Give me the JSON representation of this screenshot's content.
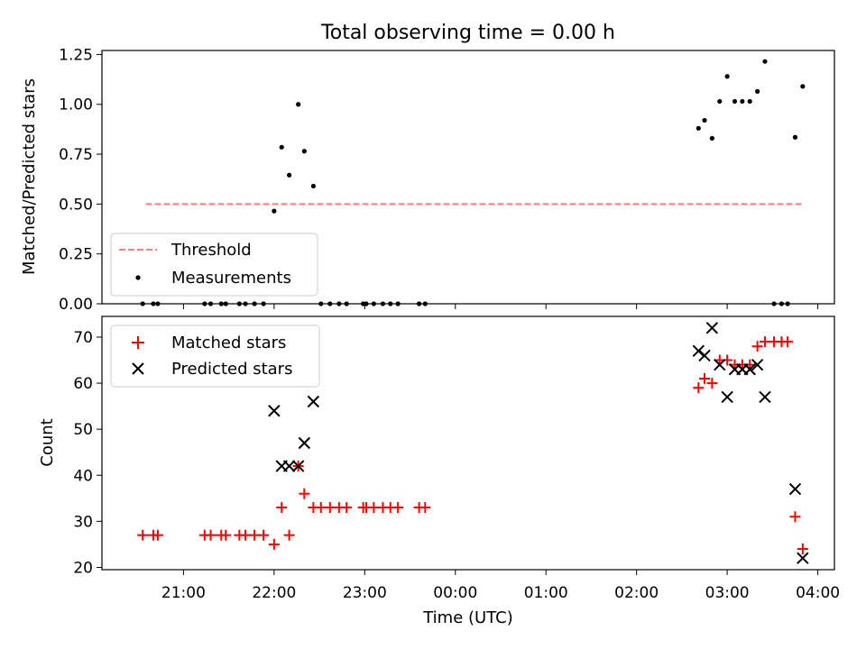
{
  "figure": {
    "title": "Total observing time = 0.00 h"
  },
  "chart_data": [
    {
      "type": "scatter",
      "ylabel": "Matched/Predicted stars",
      "ylim": [
        0,
        1.27
      ],
      "xlim": [
        "20:06",
        "04:11"
      ],
      "yticks": [
        "0.00",
        "0.25",
        "0.50",
        "0.75",
        "1.00",
        "1.25"
      ],
      "legend": {
        "placement": "lower-left",
        "entries": [
          "Threshold",
          "Measurements"
        ]
      },
      "threshold": {
        "name": "Threshold",
        "color": "#ff7f7f",
        "x": [
          "20:35",
          "03:50"
        ],
        "y": 0.5
      },
      "series": [
        {
          "name": "Measurements",
          "color": "#000000",
          "points": [
            [
              "20:33",
              0
            ],
            [
              "20:40",
              0
            ],
            [
              "20:43",
              0
            ],
            [
              "21:14",
              0
            ],
            [
              "21:18",
              0
            ],
            [
              "21:25",
              0
            ],
            [
              "21:28",
              0
            ],
            [
              "21:37",
              0
            ],
            [
              "21:41",
              0
            ],
            [
              "21:47",
              0
            ],
            [
              "21:53",
              0
            ],
            [
              "22:00",
              0.465
            ],
            [
              "22:05",
              0.785
            ],
            [
              "22:10",
              0.645
            ],
            [
              "22:16",
              1.0
            ],
            [
              "22:20",
              0.765
            ],
            [
              "22:26",
              0.59
            ],
            [
              "22:31",
              0
            ],
            [
              "22:37",
              0
            ],
            [
              "22:43",
              0
            ],
            [
              "22:48",
              0
            ],
            [
              "22:59",
              0
            ],
            [
              "23:01",
              0
            ],
            [
              "23:06",
              0
            ],
            [
              "23:12",
              0
            ],
            [
              "23:17",
              0
            ],
            [
              "23:22",
              0
            ],
            [
              "23:36",
              0
            ],
            [
              "23:40",
              0
            ],
            [
              "02:41",
              0.88
            ],
            [
              "02:45",
              0.92
            ],
            [
              "02:50",
              0.83
            ],
            [
              "02:55",
              1.015
            ],
            [
              "03:00",
              1.14
            ],
            [
              "03:05",
              1.015
            ],
            [
              "03:10",
              1.015
            ],
            [
              "03:15",
              1.015
            ],
            [
              "03:20",
              1.065
            ],
            [
              "03:25",
              1.215
            ],
            [
              "03:31",
              0
            ],
            [
              "03:36",
              0
            ],
            [
              "03:40",
              0
            ],
            [
              "03:45",
              0.835
            ],
            [
              "03:50",
              1.09
            ]
          ]
        }
      ]
    },
    {
      "type": "scatter",
      "xlabel": "Time (UTC)",
      "ylabel": "Count",
      "ylim": [
        19.5,
        74.5
      ],
      "xlim": [
        "20:06",
        "04:11"
      ],
      "yticks": [
        20,
        30,
        40,
        50,
        60,
        70
      ],
      "xticks": [
        "21:00",
        "22:00",
        "23:00",
        "00:00",
        "01:00",
        "02:00",
        "03:00",
        "04:00"
      ],
      "legend": {
        "placement": "upper-left",
        "entries": [
          "Matched stars",
          "Predicted stars"
        ]
      },
      "series": [
        {
          "name": "Matched stars",
          "marker": "plus",
          "color": "#ff0000",
          "points": [
            [
              "20:33",
              27
            ],
            [
              "20:40",
              27
            ],
            [
              "20:43",
              27
            ],
            [
              "21:14",
              27
            ],
            [
              "21:18",
              27
            ],
            [
              "21:25",
              27
            ],
            [
              "21:28",
              27
            ],
            [
              "21:37",
              27
            ],
            [
              "21:41",
              27
            ],
            [
              "21:47",
              27
            ],
            [
              "21:53",
              27
            ],
            [
              "22:00",
              25
            ],
            [
              "22:05",
              33
            ],
            [
              "22:10",
              27
            ],
            [
              "22:16",
              42
            ],
            [
              "22:20",
              36
            ],
            [
              "22:26",
              33
            ],
            [
              "22:31",
              33
            ],
            [
              "22:37",
              33
            ],
            [
              "22:43",
              33
            ],
            [
              "22:48",
              33
            ],
            [
              "22:59",
              33
            ],
            [
              "23:01",
              33
            ],
            [
              "23:06",
              33
            ],
            [
              "23:12",
              33
            ],
            [
              "23:17",
              33
            ],
            [
              "23:22",
              33
            ],
            [
              "23:36",
              33
            ],
            [
              "23:40",
              33
            ],
            [
              "02:41",
              59
            ],
            [
              "02:45",
              61
            ],
            [
              "02:50",
              60
            ],
            [
              "02:55",
              65
            ],
            [
              "03:00",
              65
            ],
            [
              "03:05",
              64
            ],
            [
              "03:10",
              64
            ],
            [
              "03:15",
              64
            ],
            [
              "03:20",
              68
            ],
            [
              "03:25",
              69
            ],
            [
              "03:31",
              69
            ],
            [
              "03:36",
              69
            ],
            [
              "03:40",
              69
            ],
            [
              "03:45",
              31
            ],
            [
              "03:50",
              24
            ]
          ]
        },
        {
          "name": "Predicted stars",
          "marker": "x",
          "color": "#000000",
          "points": [
            [
              "22:00",
              54
            ],
            [
              "22:05",
              42
            ],
            [
              "22:10",
              42
            ],
            [
              "22:16",
              42
            ],
            [
              "22:20",
              47
            ],
            [
              "22:26",
              56
            ],
            [
              "02:41",
              67
            ],
            [
              "02:45",
              66
            ],
            [
              "02:50",
              72
            ],
            [
              "02:55",
              64
            ],
            [
              "03:00",
              57
            ],
            [
              "03:05",
              63
            ],
            [
              "03:10",
              63
            ],
            [
              "03:15",
              63
            ],
            [
              "03:20",
              64
            ],
            [
              "03:25",
              57
            ],
            [
              "03:45",
              37
            ],
            [
              "03:50",
              22
            ]
          ]
        }
      ]
    }
  ]
}
